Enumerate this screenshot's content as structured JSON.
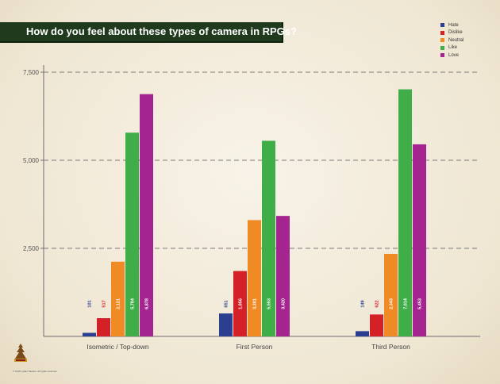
{
  "header": {
    "title": "How do you feel about these types of camera in RPGs?"
  },
  "footer": {
    "copyright": "© 2015 Larian Studios. All rights reserved."
  },
  "chart_data": {
    "type": "bar",
    "title": "How do you feel about these types of camera in RPGs?",
    "xlabel": "",
    "ylabel": "",
    "categories": [
      "Isometric / Top-down",
      "First Person",
      "Third Person"
    ],
    "series": [
      {
        "name": "Hate",
        "color": "#2a3f8f",
        "values": [
          101,
          651,
          149
        ],
        "labels": [
          "101",
          "651",
          "149"
        ]
      },
      {
        "name": "Dislike",
        "color": "#d42027",
        "values": [
          517,
          1856,
          622
        ],
        "labels": [
          "517",
          "1,856",
          "622"
        ]
      },
      {
        "name": "Neutral",
        "color": "#f08a24",
        "values": [
          2121,
          3301,
          2343
        ],
        "labels": [
          "2,121",
          "3,301",
          "2,343"
        ]
      },
      {
        "name": "Like",
        "color": "#3fae49",
        "values": [
          5784,
          5553,
          7014
        ],
        "labels": [
          "5,784",
          "5,553",
          "7,014"
        ]
      },
      {
        "name": "Love",
        "color": "#a4258f",
        "values": [
          6878,
          3420,
          5453
        ],
        "labels": [
          "6,878",
          "3,420",
          "5,453"
        ]
      }
    ],
    "yticks": [
      {
        "value": 2500,
        "label": "2,500"
      },
      {
        "value": 5000,
        "label": "5,000"
      },
      {
        "value": 7500,
        "label": "7,500"
      }
    ],
    "ylim": [
      0,
      7500
    ],
    "grid": true,
    "legend_position": "top-right"
  }
}
